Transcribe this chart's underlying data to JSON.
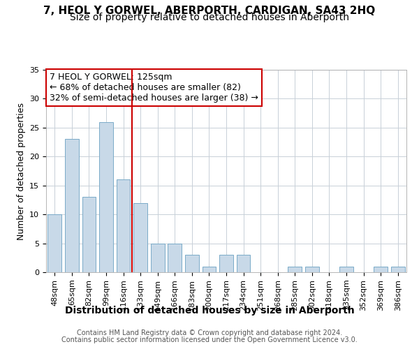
{
  "title": "7, HEOL Y GORWEL, ABERPORTH, CARDIGAN, SA43 2HQ",
  "subtitle": "Size of property relative to detached houses in Aberporth",
  "xlabel": "Distribution of detached houses by size in Aberporth",
  "ylabel": "Number of detached properties",
  "categories": [
    "48sqm",
    "65sqm",
    "82sqm",
    "99sqm",
    "116sqm",
    "133sqm",
    "149sqm",
    "166sqm",
    "183sqm",
    "200sqm",
    "217sqm",
    "234sqm",
    "251sqm",
    "268sqm",
    "285sqm",
    "302sqm",
    "318sqm",
    "335sqm",
    "352sqm",
    "369sqm",
    "386sqm"
  ],
  "values": [
    10,
    23,
    13,
    26,
    16,
    12,
    5,
    5,
    3,
    1,
    3,
    3,
    0,
    0,
    1,
    1,
    0,
    1,
    0,
    1,
    1
  ],
  "bar_color": "#c8d9e8",
  "bar_edgecolor": "#7aaac8",
  "bar_width": 0.8,
  "red_line_x": 4.5,
  "red_line_color": "#cc0000",
  "annotation_line1": "7 HEOL Y GORWEL: 125sqm",
  "annotation_line2": "← 68% of detached houses are smaller (82)",
  "annotation_line3": "32% of semi-detached houses are larger (38) →",
  "annotation_box_color": "#cc0000",
  "ylim": [
    0,
    35
  ],
  "yticks": [
    0,
    5,
    10,
    15,
    20,
    25,
    30,
    35
  ],
  "footer_line1": "Contains HM Land Registry data © Crown copyright and database right 2024.",
  "footer_line2": "Contains public sector information licensed under the Open Government Licence v3.0.",
  "bg_color": "#ffffff",
  "grid_color": "#c8d0d8",
  "title_fontsize": 11,
  "subtitle_fontsize": 10,
  "xlabel_fontsize": 10,
  "ylabel_fontsize": 9,
  "tick_fontsize": 8,
  "footer_fontsize": 7,
  "annot_fontsize": 9
}
